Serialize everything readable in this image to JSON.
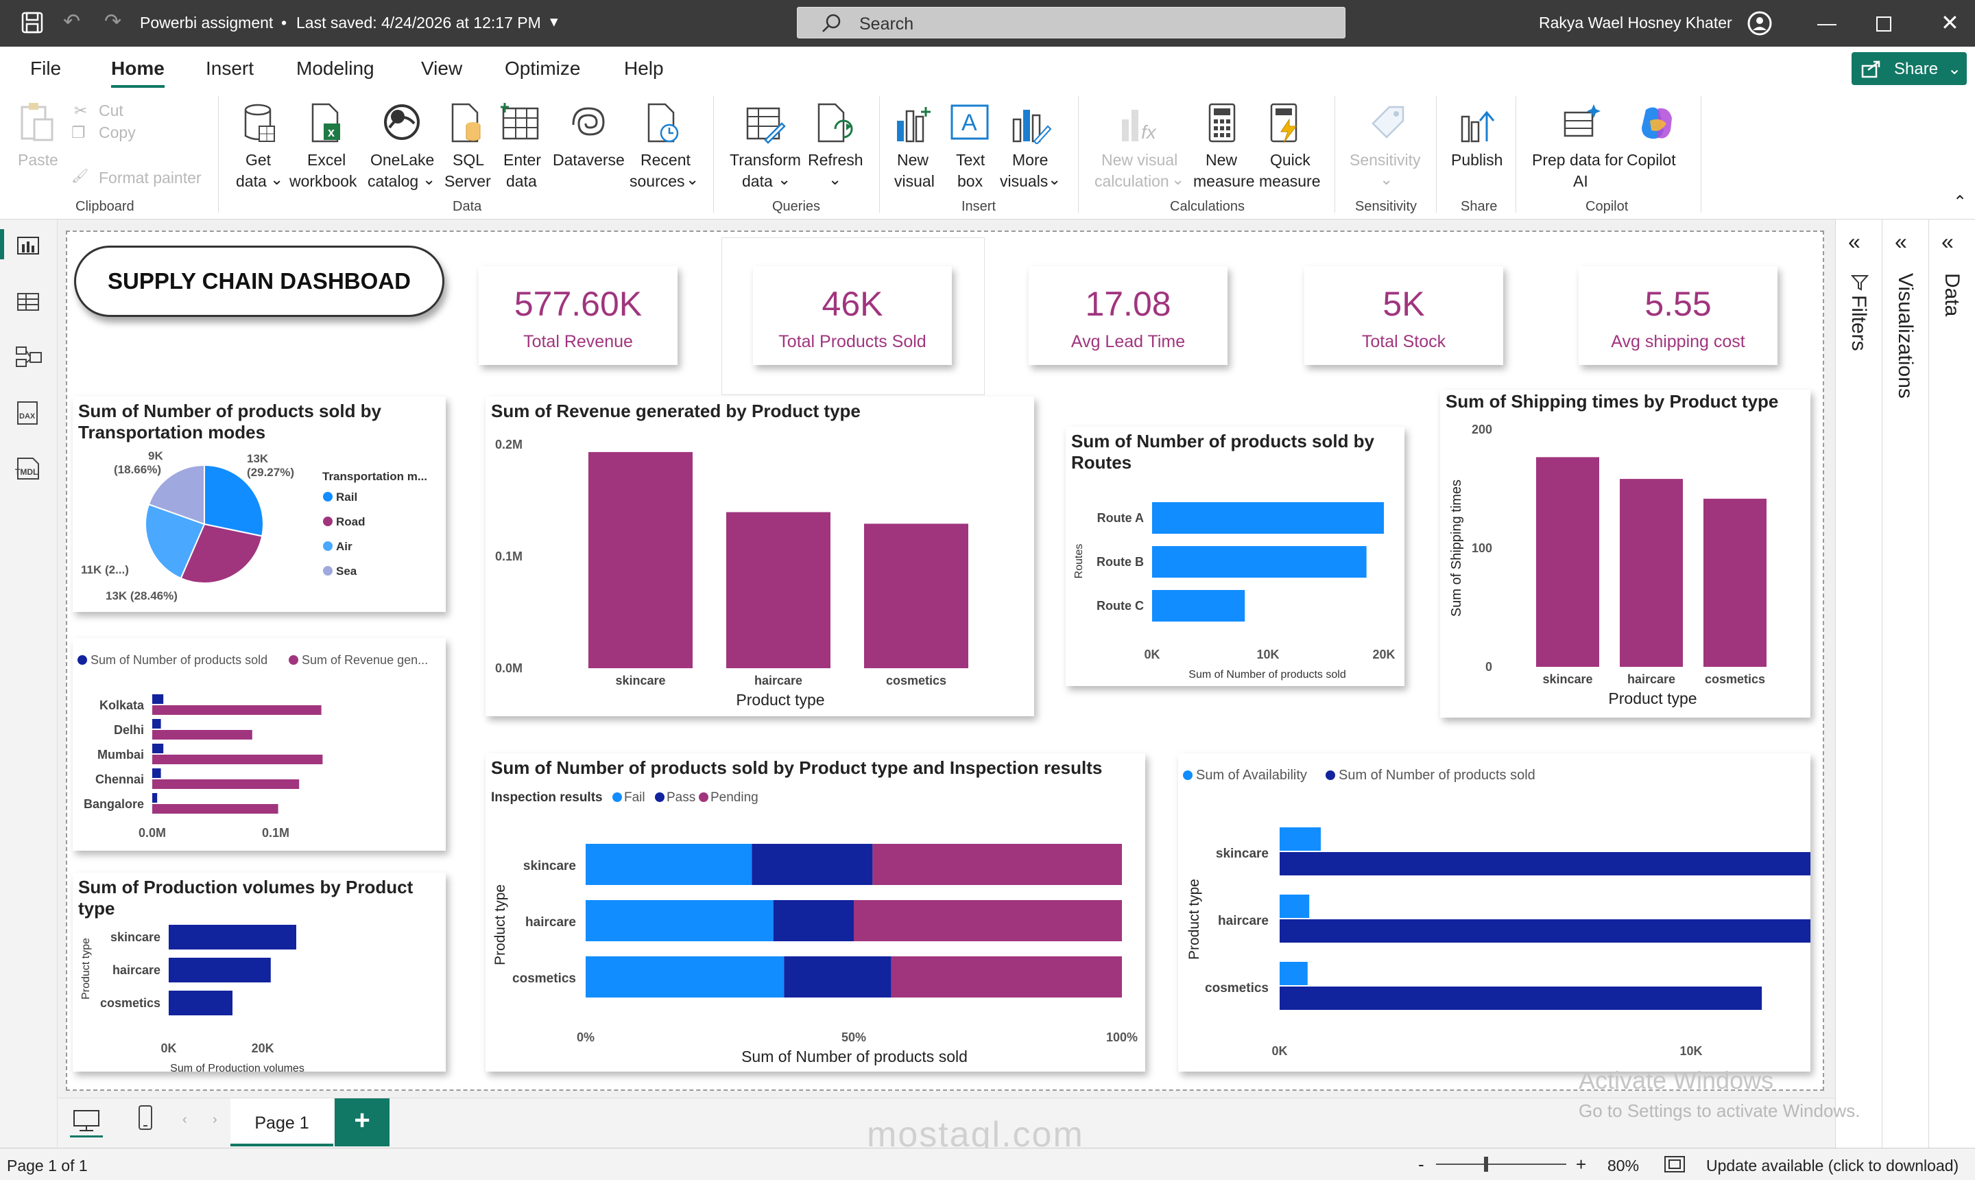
{
  "titlebar": {
    "title": "Powerbi assigment",
    "saved": "Last saved: 4/24/2026 at 12:17 PM",
    "search": "Search",
    "user": "Rakya Wael Hosney Khater"
  },
  "menu": {
    "file": "File",
    "home": "Home",
    "insert": "Insert",
    "modeling": "Modeling",
    "view": "View",
    "optimize": "Optimize",
    "help": "Help",
    "share": "Share"
  },
  "ribbon": {
    "paste": "Paste",
    "cut": "Cut",
    "copy": "Copy",
    "format_painter": "Format painter",
    "clipboard": "Clipboard",
    "get_data": [
      "Get",
      "data"
    ],
    "excel": [
      "Excel",
      "workbook"
    ],
    "onelake": [
      "OneLake",
      "catalog"
    ],
    "sql": [
      "SQL",
      "Server"
    ],
    "enter": [
      "Enter",
      "data"
    ],
    "dataverse": "Dataverse",
    "recent": [
      "Recent",
      "sources"
    ],
    "data_group": "Data",
    "transform": [
      "Transform",
      "data"
    ],
    "refresh": "Refresh",
    "queries": "Queries",
    "new_visual": [
      "New",
      "visual"
    ],
    "text_box": [
      "Text",
      "box"
    ],
    "more_visuals": [
      "More",
      "visuals"
    ],
    "insert_group": "Insert",
    "new_calc": [
      "New visual",
      "calculation"
    ],
    "new_measure": [
      "New",
      "measure"
    ],
    "quick_measure": [
      "Quick",
      "measure"
    ],
    "calculations": "Calculations",
    "sensitivity": "Sensitivity",
    "sensitivity_group": "Sensitivity",
    "publish": "Publish",
    "share_group": "Share",
    "prep": [
      "Prep data for",
      "AI"
    ],
    "copilot": "Copilot",
    "copilot_group": "Copilot"
  },
  "dashboard": {
    "title": "SUPPLY CHAIN DASHBOAD",
    "kpis": [
      {
        "value": "577.60K",
        "label": "Total Revenue"
      },
      {
        "value": "46K",
        "label": "Total Products Sold"
      },
      {
        "value": "17.08",
        "label": "Avg Lead Time"
      },
      {
        "value": "5K",
        "label": "Total Stock"
      },
      {
        "value": "5.55",
        "label": "Avg shipping cost"
      }
    ]
  },
  "colors": {
    "magenta": "#a0357e",
    "blue": "#118dff",
    "navy": "#12239e",
    "lavender": "#a0a8e0"
  },
  "chart_data": [
    {
      "type": "pie",
      "title": "Sum of Number of products sold by Transportation modes",
      "legend_title": "Transportation m...",
      "categories": [
        "Rail",
        "Road",
        "Air",
        "Sea"
      ],
      "values": [
        13000,
        13000,
        11000,
        9000
      ],
      "labels": [
        "13K (29.27%)",
        "13K (28.46%)",
        "11K (2...)",
        "9K (18.66%)"
      ],
      "colors": [
        "#118dff",
        "#a0357e",
        "#4aa8ff",
        "#a0a8e0"
      ]
    },
    {
      "type": "bar",
      "title": "Sum of Revenue generated by Product type",
      "categories": [
        "skincare",
        "haircare",
        "cosmetics"
      ],
      "values": [
        241628,
        174455,
        161521
      ],
      "xlabel": "Product type",
      "yticks": [
        "0.0M",
        "0.1M",
        "0.2M"
      ],
      "ylim": [
        0,
        250000
      ]
    },
    {
      "type": "bar",
      "orientation": "horizontal",
      "title": "Sum of Number of products sold by Routes",
      "categories": [
        "Route A",
        "Route B",
        "Route C"
      ],
      "values": [
        20000,
        18500,
        8000
      ],
      "ylabel": "Routes",
      "xlabel": "Sum of Number of products sold",
      "xticks": [
        "0K",
        "10K",
        "20K"
      ],
      "xlim": [
        0,
        20000
      ]
    },
    {
      "type": "bar",
      "title": "Sum of Shipping times by Product type",
      "categories": [
        "skincare",
        "haircare",
        "cosmetics"
      ],
      "values": [
        212,
        190,
        170
      ],
      "ylabel": "Sum of Shipping times",
      "xlabel": "Product type",
      "yticks": [
        "0",
        "100",
        "200"
      ],
      "ylim": [
        0,
        240
      ]
    },
    {
      "type": "bar",
      "orientation": "horizontal",
      "categories": [
        "Kolkata",
        "Delhi",
        "Mumbai",
        "Chennai",
        "Bangalore"
      ],
      "series": [
        {
          "name": "Sum of Number of products sold",
          "values": [
            0.009,
            0.007,
            0.009,
            0.007,
            0.004
          ]
        },
        {
          "name": "Sum of Revenue gen...",
          "values": [
            0.137,
            0.081,
            0.138,
            0.119,
            0.102
          ]
        }
      ],
      "xticks": [
        "0.0M",
        "0.1M"
      ],
      "xlim": [
        0,
        0.14
      ]
    },
    {
      "type": "bar",
      "orientation": "horizontal",
      "title": "Sum of Production volumes by Product type",
      "categories": [
        "skincare",
        "haircare",
        "cosmetics"
      ],
      "values": [
        20000,
        16000,
        10000
      ],
      "ylabel": "Product type",
      "xlabel": "Sum of Production volumes",
      "xticks": [
        "0K",
        "20K"
      ],
      "xlim": [
        0,
        24000
      ]
    },
    {
      "type": "bar",
      "orientation": "horizontal",
      "stacked": "100%",
      "title": "Sum of Number of products sold by Product type and Inspection results",
      "legend_title": "Inspection results",
      "categories": [
        "skincare",
        "haircare",
        "cosmetics"
      ],
      "series": [
        {
          "name": "Fail",
          "values": [
            31,
            35,
            37
          ]
        },
        {
          "name": "Pass",
          "values": [
            22.5,
            15,
            20
          ]
        },
        {
          "name": "Pending",
          "values": [
            46.5,
            50,
            43
          ]
        }
      ],
      "ylabel": "Product type",
      "xlabel": "Sum of Number of products sold",
      "xticks": [
        "0%",
        "50%",
        "100%"
      ]
    },
    {
      "type": "bar",
      "orientation": "horizontal",
      "categories": [
        "skincare",
        "haircare",
        "cosmetics"
      ],
      "series": [
        {
          "name": "Sum of Availability",
          "values": [
            1000,
            720,
            680
          ]
        },
        {
          "name": "Sum of Number of products sold",
          "values": [
            20731,
            13611,
            11719
          ]
        }
      ],
      "ylabel": "Product type",
      "xticks": [
        "0K",
        "10K",
        "20K"
      ],
      "xlim": [
        0,
        23000
      ]
    }
  ],
  "panes": {
    "filters": "Filters",
    "visualizations": "Visualizations",
    "data": "Data"
  },
  "tabs": {
    "page1": "Page 1",
    "add": "+"
  },
  "status": {
    "page": "Page 1 of 1",
    "zoom": "80%",
    "update": "Update available (click to download)"
  },
  "watermark": {
    "line1": "Activate Windows",
    "line2": "Go to Settings to activate Windows.",
    "brand": "mostaql.com"
  }
}
